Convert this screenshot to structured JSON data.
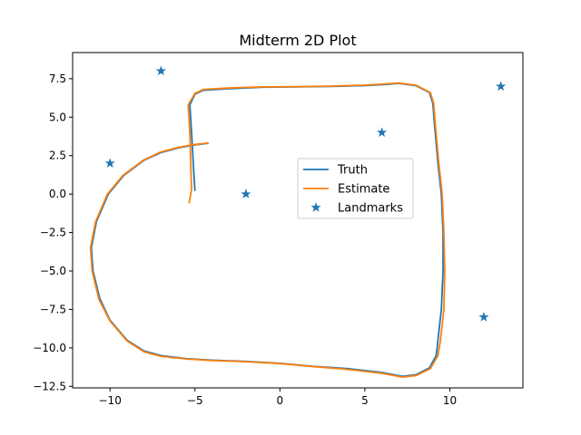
{
  "chart_data": {
    "type": "line",
    "title": "Midterm 2D Plot",
    "xlabel": "",
    "ylabel": "",
    "xlim": [
      -12.2,
      14.3
    ],
    "ylim": [
      -12.6,
      9.2
    ],
    "xticks": [
      -10,
      -5,
      0,
      5,
      10
    ],
    "yticks": [
      7.5,
      5.0,
      2.5,
      0.0,
      -2.5,
      -5.0,
      -7.5,
      -10.0,
      -12.5
    ],
    "xtick_labels": [
      "−10",
      "−5",
      "0",
      "5",
      "10"
    ],
    "ytick_labels": [
      "7.5",
      "5.0",
      "2.5",
      "0.0",
      "−2.5",
      "−5.0",
      "−7.5",
      "−10.0",
      "−12.5"
    ],
    "grid": false,
    "legend_position": "center-right",
    "series": [
      {
        "name": "Truth",
        "color": "#1f77b4",
        "marker": "line",
        "points": [
          [
            -5.0,
            0.2
          ],
          [
            -5.1,
            2.0
          ],
          [
            -5.2,
            4.0
          ],
          [
            -5.3,
            5.8
          ],
          [
            -5.0,
            6.5
          ],
          [
            -4.5,
            6.75
          ],
          [
            -3.0,
            6.85
          ],
          [
            -1.0,
            6.95
          ],
          [
            1.0,
            6.97
          ],
          [
            3.0,
            7.0
          ],
          [
            5.0,
            7.05
          ],
          [
            6.5,
            7.15
          ],
          [
            7.0,
            7.2
          ],
          [
            8.0,
            7.05
          ],
          [
            8.8,
            6.6
          ],
          [
            9.0,
            5.9
          ],
          [
            9.1,
            4.5
          ],
          [
            9.3,
            2.0
          ],
          [
            9.5,
            0.0
          ],
          [
            9.6,
            -2.5
          ],
          [
            9.6,
            -5.0
          ],
          [
            9.5,
            -7.5
          ],
          [
            9.3,
            -9.5
          ],
          [
            9.2,
            -10.5
          ],
          [
            8.8,
            -11.3
          ],
          [
            8.0,
            -11.75
          ],
          [
            7.2,
            -11.85
          ],
          [
            6.0,
            -11.6
          ],
          [
            4.0,
            -11.35
          ],
          [
            2.0,
            -11.2
          ],
          [
            0.0,
            -11.0
          ],
          [
            -2.0,
            -10.88
          ],
          [
            -4.0,
            -10.8
          ],
          [
            -5.5,
            -10.7
          ],
          [
            -7.0,
            -10.5
          ],
          [
            -8.0,
            -10.2
          ],
          [
            -9.0,
            -9.5
          ],
          [
            -10.0,
            -8.2
          ],
          [
            -10.6,
            -6.8
          ],
          [
            -11.0,
            -5.0
          ],
          [
            -11.1,
            -3.5
          ],
          [
            -10.8,
            -1.8
          ],
          [
            -10.1,
            0.0
          ],
          [
            -9.2,
            1.2
          ],
          [
            -8.0,
            2.2
          ],
          [
            -7.0,
            2.7
          ],
          [
            -6.0,
            3.0
          ],
          [
            -5.0,
            3.2
          ],
          [
            -4.2,
            3.3
          ]
        ]
      },
      {
        "name": "Estimate",
        "color": "#ff7f0e",
        "marker": "line",
        "points": [
          [
            -5.35,
            -0.6
          ],
          [
            -5.2,
            0.3
          ],
          [
            -5.25,
            2.0
          ],
          [
            -5.3,
            4.0
          ],
          [
            -5.4,
            5.8
          ],
          [
            -5.0,
            6.55
          ],
          [
            -4.5,
            6.8
          ],
          [
            -3.0,
            6.9
          ],
          [
            -1.0,
            6.97
          ],
          [
            1.0,
            6.98
          ],
          [
            3.0,
            7.02
          ],
          [
            5.0,
            7.08
          ],
          [
            6.5,
            7.18
          ],
          [
            7.0,
            7.22
          ],
          [
            8.0,
            7.08
          ],
          [
            8.85,
            6.6
          ],
          [
            9.05,
            5.9
          ],
          [
            9.15,
            4.5
          ],
          [
            9.35,
            2.0
          ],
          [
            9.55,
            0.0
          ],
          [
            9.65,
            -2.5
          ],
          [
            9.7,
            -5.0
          ],
          [
            9.65,
            -7.5
          ],
          [
            9.45,
            -9.5
          ],
          [
            9.3,
            -10.5
          ],
          [
            8.85,
            -11.35
          ],
          [
            8.0,
            -11.8
          ],
          [
            7.2,
            -11.9
          ],
          [
            6.0,
            -11.65
          ],
          [
            4.0,
            -11.4
          ],
          [
            2.0,
            -11.22
          ],
          [
            0.0,
            -11.02
          ],
          [
            -2.0,
            -10.9
          ],
          [
            -4.0,
            -10.82
          ],
          [
            -5.5,
            -10.72
          ],
          [
            -7.0,
            -10.55
          ],
          [
            -8.0,
            -10.25
          ],
          [
            -9.0,
            -9.55
          ],
          [
            -10.0,
            -8.25
          ],
          [
            -10.65,
            -6.85
          ],
          [
            -11.05,
            -5.0
          ],
          [
            -11.15,
            -3.5
          ],
          [
            -10.85,
            -1.8
          ],
          [
            -10.15,
            0.0
          ],
          [
            -9.25,
            1.2
          ],
          [
            -8.05,
            2.2
          ],
          [
            -7.05,
            2.72
          ],
          [
            -6.05,
            3.02
          ],
          [
            -5.05,
            3.22
          ],
          [
            -4.2,
            3.32
          ]
        ]
      },
      {
        "name": "Landmarks",
        "color": "#1f77b4",
        "marker": "star",
        "points": [
          [
            -7.0,
            8.0
          ],
          [
            -10.0,
            2.0
          ],
          [
            -2.0,
            0.0
          ],
          [
            6.0,
            4.0
          ],
          [
            13.0,
            7.0
          ],
          [
            12.0,
            -8.0
          ]
        ]
      }
    ]
  }
}
